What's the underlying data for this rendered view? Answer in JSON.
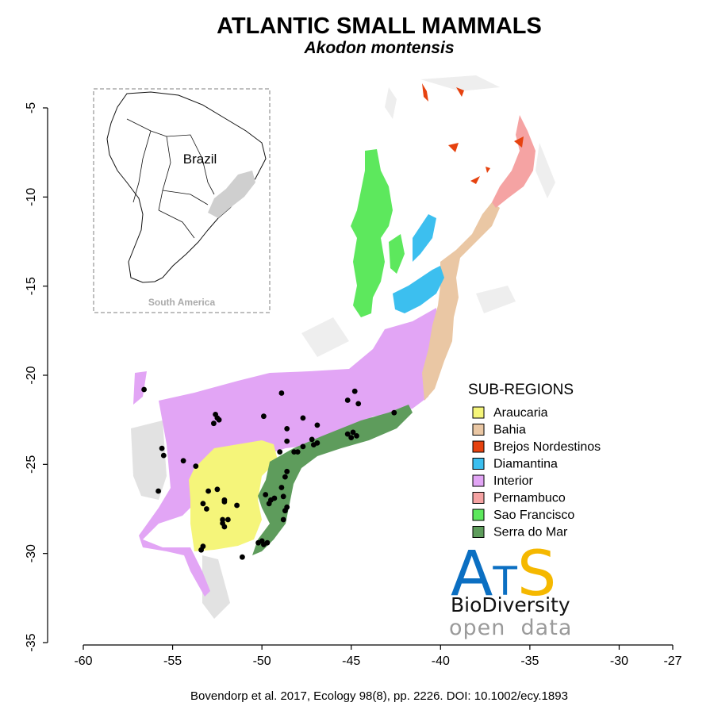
{
  "header": {
    "title": "ATLANTIC SMALL MAMMALS",
    "subtitle": "Akodon montensis"
  },
  "axes": {
    "x_ticks": [
      "-60",
      "-55",
      "-50",
      "-45",
      "-40",
      "-35",
      "-30",
      "-27"
    ],
    "y_ticks": [
      "-5",
      "-10",
      "-15",
      "-20",
      "-25",
      "-30",
      "-35"
    ]
  },
  "inset": {
    "country_label": "Brazil",
    "caption": "South America"
  },
  "legend": {
    "title": "SUB-REGIONS",
    "items": [
      {
        "label": "Araucaria",
        "color": "#f5f57a"
      },
      {
        "label": "Bahia",
        "color": "#eac7a4"
      },
      {
        "label": "Brejos Nordestinos",
        "color": "#e6420f"
      },
      {
        "label": "Diamantina",
        "color": "#3cbfef"
      },
      {
        "label": "Interior",
        "color": "#e2a5f5"
      },
      {
        "label": "Pernambuco",
        "color": "#f5a3a3"
      },
      {
        "label": "Sao Francisco",
        "color": "#5de85d"
      },
      {
        "label": "Serra do Mar",
        "color": "#5e9c5c"
      }
    ]
  },
  "logo": {
    "main_a": "A",
    "main_t": "T",
    "main_s": "S",
    "line2": "BioDiversity",
    "line3": "open  data",
    "blue": "#0b6fc2",
    "yellow": "#f5b800"
  },
  "citation": "Bovendorp et al. 2017, Ecology 98(8), pp. 2226. DOI: 10.1002/ecy.1893",
  "chart_data": {
    "type": "scatter",
    "xlim": [
      -60,
      -27
    ],
    "ylim": [
      -35,
      -3
    ],
    "x_ticks": [
      -60,
      -55,
      -50,
      -45,
      -40,
      -35,
      -30,
      -27
    ],
    "y_ticks": [
      -5,
      -10,
      -15,
      -20,
      -25,
      -30,
      -35
    ],
    "series": [
      {
        "name": "Akodon montensis",
        "points": [
          [
            -56.6,
            -20.8
          ],
          [
            -55.6,
            -24.1
          ],
          [
            -55.5,
            -24.5
          ],
          [
            -54.4,
            -24.8
          ],
          [
            -53.7,
            -25.1
          ],
          [
            -55.8,
            -26.5
          ],
          [
            -52.6,
            -22.2
          ],
          [
            -52.5,
            -22.4
          ],
          [
            -52.7,
            -22.7
          ],
          [
            -52.4,
            -22.5
          ],
          [
            -49.9,
            -22.3
          ],
          [
            -48.9,
            -21.0
          ],
          [
            -47.7,
            -22.4
          ],
          [
            -46.9,
            -22.8
          ],
          [
            -45.2,
            -21.4
          ],
          [
            -44.8,
            -20.9
          ],
          [
            -44.6,
            -21.6
          ],
          [
            -44.7,
            -23.4
          ],
          [
            -42.6,
            -22.1
          ],
          [
            -48.6,
            -23.0
          ],
          [
            -48.6,
            -23.7
          ],
          [
            -47.7,
            -24.0
          ],
          [
            -47.2,
            -23.6
          ],
          [
            -46.9,
            -23.8
          ],
          [
            -47.1,
            -23.9
          ],
          [
            -45.2,
            -23.3
          ],
          [
            -45.0,
            -23.5
          ],
          [
            -44.9,
            -23.2
          ],
          [
            -48.2,
            -24.3
          ],
          [
            -48.0,
            -24.3
          ],
          [
            -53.0,
            -26.5
          ],
          [
            -52.5,
            -26.4
          ],
          [
            -52.1,
            -27.1
          ],
          [
            -53.3,
            -27.2
          ],
          [
            -53.1,
            -27.5
          ],
          [
            -51.4,
            -27.3
          ],
          [
            -49.6,
            -27.2
          ],
          [
            -49.8,
            -26.7
          ],
          [
            -48.8,
            -26.8
          ],
          [
            -48.9,
            -26.3
          ],
          [
            -48.7,
            -27.6
          ],
          [
            -48.6,
            -27.4
          ],
          [
            -48.8,
            -28.1
          ],
          [
            -52.2,
            -28.1
          ],
          [
            -52.2,
            -28.3
          ],
          [
            -52.1,
            -28.5
          ],
          [
            -53.3,
            -29.6
          ],
          [
            -53.4,
            -29.8
          ],
          [
            -50.2,
            -29.4
          ],
          [
            -50.0,
            -29.3
          ],
          [
            -49.9,
            -29.5
          ],
          [
            -49.7,
            -29.4
          ],
          [
            -51.1,
            -30.2
          ],
          [
            -49.5,
            -27.0
          ],
          [
            -49.3,
            -26.9
          ],
          [
            -51.9,
            -28.1
          ],
          [
            -52.1,
            -27.0
          ],
          [
            -48.7,
            -25.7
          ],
          [
            -48.6,
            -25.4
          ],
          [
            -49.0,
            -24.3
          ]
        ]
      }
    ]
  }
}
